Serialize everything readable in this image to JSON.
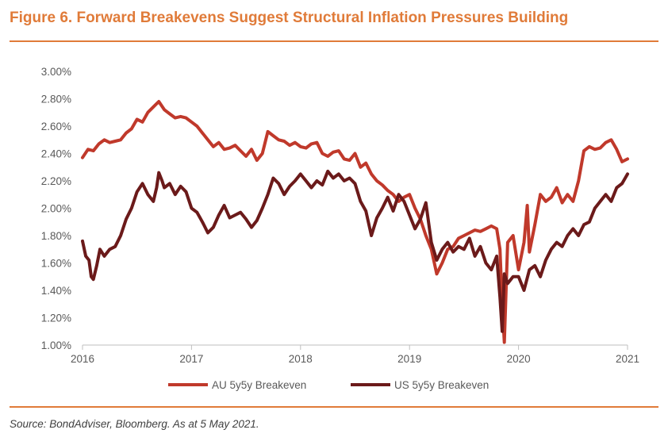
{
  "title": "Figure 6. Forward Breakevens Suggest Structural Inflation Pressures Building",
  "source": "Source: BondAdviser, Bloomberg. As at 5 May 2021.",
  "colors": {
    "accent": "#e07b39",
    "au": "#c0392b",
    "us": "#6b1a1a",
    "axis": "#bfbfbf",
    "text": "#595959"
  },
  "chart_data": {
    "type": "line",
    "xlim": [
      2016,
      2021
    ],
    "ylim": [
      1.0,
      3.0
    ],
    "x_ticks": [
      2016,
      2017,
      2018,
      2019,
      2020,
      2021
    ],
    "x_tick_labels": [
      "2016",
      "2017",
      "2018",
      "2019",
      "2020",
      "2021"
    ],
    "y_ticks": [
      1.0,
      1.2,
      1.4,
      1.6,
      1.8,
      2.0,
      2.2,
      2.4,
      2.6,
      2.8,
      3.0
    ],
    "y_tick_labels": [
      "1.00%",
      "1.20%",
      "1.40%",
      "1.60%",
      "1.80%",
      "2.00%",
      "2.20%",
      "2.40%",
      "2.60%",
      "2.80%",
      "3.00%"
    ],
    "xlabel": "",
    "ylabel": "",
    "grid": false,
    "legend_position": "bottom",
    "series": [
      {
        "name": "AU 5y5y Breakeven",
        "x": [
          2016.0,
          2016.05,
          2016.1,
          2016.15,
          2016.2,
          2016.25,
          2016.3,
          2016.35,
          2016.4,
          2016.45,
          2016.5,
          2016.55,
          2016.6,
          2016.65,
          2016.7,
          2016.75,
          2016.8,
          2016.85,
          2016.9,
          2016.95,
          2017.0,
          2017.05,
          2017.1,
          2017.15,
          2017.2,
          2017.25,
          2017.3,
          2017.35,
          2017.4,
          2017.45,
          2017.5,
          2017.55,
          2017.6,
          2017.65,
          2017.7,
          2017.75,
          2017.8,
          2017.85,
          2017.9,
          2017.95,
          2018.0,
          2018.05,
          2018.1,
          2018.15,
          2018.2,
          2018.25,
          2018.3,
          2018.35,
          2018.4,
          2018.45,
          2018.5,
          2018.55,
          2018.6,
          2018.65,
          2018.7,
          2018.75,
          2018.8,
          2018.85,
          2018.9,
          2018.95,
          2019.0,
          2019.05,
          2019.1,
          2019.15,
          2019.2,
          2019.25,
          2019.3,
          2019.35,
          2019.4,
          2019.45,
          2019.5,
          2019.55,
          2019.6,
          2019.65,
          2019.7,
          2019.75,
          2019.8,
          2019.83,
          2019.85,
          2019.87,
          2019.9,
          2019.95,
          2020.0,
          2020.05,
          2020.08,
          2020.1,
          2020.15,
          2020.2,
          2020.25,
          2020.3,
          2020.35,
          2020.4,
          2020.45,
          2020.5,
          2020.55,
          2020.6,
          2020.65,
          2020.7,
          2020.75,
          2020.8,
          2020.85,
          2020.9,
          2020.95,
          2021.0
        ],
        "values": [
          2.37,
          2.43,
          2.42,
          2.47,
          2.5,
          2.48,
          2.49,
          2.5,
          2.55,
          2.58,
          2.65,
          2.63,
          2.7,
          2.74,
          2.78,
          2.72,
          2.69,
          2.66,
          2.67,
          2.66,
          2.63,
          2.6,
          2.55,
          2.5,
          2.45,
          2.48,
          2.43,
          2.44,
          2.46,
          2.42,
          2.38,
          2.43,
          2.35,
          2.4,
          2.56,
          2.53,
          2.5,
          2.49,
          2.46,
          2.48,
          2.45,
          2.44,
          2.47,
          2.48,
          2.4,
          2.38,
          2.41,
          2.42,
          2.36,
          2.35,
          2.4,
          2.3,
          2.33,
          2.25,
          2.2,
          2.17,
          2.13,
          2.1,
          2.05,
          2.08,
          2.1,
          2.0,
          1.92,
          1.8,
          1.7,
          1.52,
          1.6,
          1.7,
          1.72,
          1.78,
          1.8,
          1.82,
          1.84,
          1.83,
          1.85,
          1.87,
          1.85,
          1.7,
          1.3,
          1.02,
          1.75,
          1.8,
          1.55,
          1.75,
          2.02,
          1.68,
          1.88,
          2.1,
          2.05,
          2.08,
          2.15,
          2.04,
          2.1,
          2.05,
          2.2,
          2.42,
          2.45,
          2.43,
          2.44,
          2.48,
          2.5,
          2.43,
          2.34,
          2.36
        ]
      },
      {
        "name": "US 5y5y Breakeven",
        "x": [
          2016.0,
          2016.03,
          2016.06,
          2016.08,
          2016.1,
          2016.13,
          2016.16,
          2016.2,
          2016.25,
          2016.3,
          2016.35,
          2016.4,
          2016.45,
          2016.5,
          2016.55,
          2016.6,
          2016.65,
          2016.68,
          2016.7,
          2016.73,
          2016.75,
          2016.8,
          2016.85,
          2016.9,
          2016.95,
          2017.0,
          2017.05,
          2017.1,
          2017.15,
          2017.2,
          2017.25,
          2017.3,
          2017.35,
          2017.4,
          2017.45,
          2017.5,
          2017.55,
          2017.6,
          2017.65,
          2017.7,
          2017.75,
          2017.8,
          2017.85,
          2017.9,
          2017.95,
          2018.0,
          2018.05,
          2018.1,
          2018.15,
          2018.2,
          2018.25,
          2018.3,
          2018.35,
          2018.4,
          2018.45,
          2018.5,
          2018.55,
          2018.6,
          2018.65,
          2018.7,
          2018.75,
          2018.8,
          2018.85,
          2018.9,
          2018.95,
          2019.0,
          2019.05,
          2019.1,
          2019.15,
          2019.2,
          2019.25,
          2019.3,
          2019.35,
          2019.4,
          2019.45,
          2019.5,
          2019.55,
          2019.6,
          2019.65,
          2019.7,
          2019.75,
          2019.8,
          2019.83,
          2019.85,
          2019.87,
          2019.9,
          2019.95,
          2020.0,
          2020.05,
          2020.1,
          2020.15,
          2020.2,
          2020.25,
          2020.3,
          2020.35,
          2020.4,
          2020.45,
          2020.5,
          2020.55,
          2020.6,
          2020.65,
          2020.7,
          2020.75,
          2020.8,
          2020.85,
          2020.9,
          2020.95,
          2021.0
        ],
        "values": [
          1.76,
          1.65,
          1.62,
          1.5,
          1.48,
          1.58,
          1.7,
          1.65,
          1.7,
          1.72,
          1.8,
          1.92,
          2.0,
          2.12,
          2.18,
          2.1,
          2.05,
          2.15,
          2.26,
          2.2,
          2.15,
          2.18,
          2.1,
          2.16,
          2.12,
          2.0,
          1.97,
          1.9,
          1.82,
          1.86,
          1.95,
          2.02,
          1.93,
          1.95,
          1.97,
          1.92,
          1.86,
          1.91,
          2.0,
          2.1,
          2.22,
          2.18,
          2.1,
          2.16,
          2.2,
          2.25,
          2.2,
          2.15,
          2.2,
          2.17,
          2.27,
          2.22,
          2.25,
          2.2,
          2.22,
          2.18,
          2.05,
          1.98,
          1.8,
          1.93,
          2.0,
          2.08,
          1.98,
          2.1,
          2.05,
          1.95,
          1.85,
          1.92,
          2.04,
          1.75,
          1.62,
          1.7,
          1.75,
          1.68,
          1.72,
          1.7,
          1.78,
          1.65,
          1.72,
          1.6,
          1.55,
          1.65,
          1.35,
          1.1,
          1.52,
          1.45,
          1.5,
          1.5,
          1.4,
          1.55,
          1.58,
          1.5,
          1.62,
          1.7,
          1.75,
          1.72,
          1.8,
          1.85,
          1.8,
          1.88,
          1.9,
          2.0,
          2.05,
          2.1,
          2.05,
          2.15,
          2.18,
          2.25
        ]
      }
    ]
  }
}
